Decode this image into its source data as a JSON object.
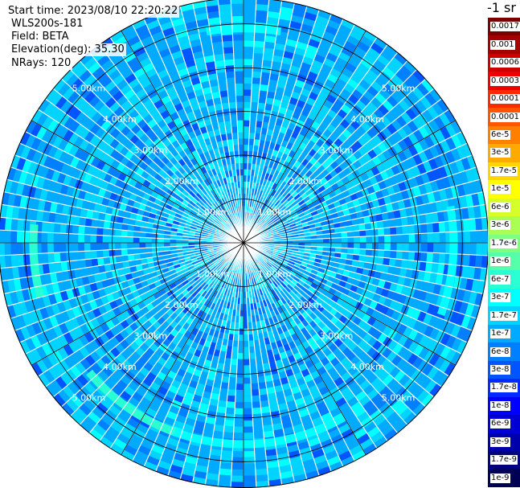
{
  "info": {
    "start_time": "Start time: 2023/08/10 22:20:22",
    "instrument": "WLS200s-181",
    "field": "Field: BETA",
    "elevation": "Elevation(deg): 35.30",
    "nrays": "NRays: 120"
  },
  "unit_label": "-1 sr",
  "chart_data": {
    "type": "heatmap",
    "subtype": "polar-ppi",
    "title": "",
    "n_rays": 120,
    "max_range_km": 5.6,
    "range_rings_km": [
      1.0,
      2.0,
      3.0,
      4.0,
      5.0
    ],
    "ring_labels": [
      "1.00km",
      "2.00km",
      "3.00km",
      "4.00km",
      "5.00km"
    ],
    "spokes_deg": [
      0,
      30,
      60,
      90,
      120,
      150,
      180,
      210,
      240,
      270,
      300,
      330
    ],
    "dominant_value": "1e-7",
    "enhanced_arcs": [
      {
        "range_km": 4.6,
        "from_deg": 150,
        "to_deg": 200,
        "value": "3e-7"
      },
      {
        "range_km": 4.6,
        "from_deg": 200,
        "to_deg": 230,
        "value": "6e-7"
      },
      {
        "range_km": 4.8,
        "from_deg": 80,
        "to_deg": 110,
        "value": "3e-7"
      },
      {
        "range_km": 4.9,
        "from_deg": 350,
        "to_deg": 10,
        "value": "3e-7"
      },
      {
        "range_km": 4.8,
        "from_deg": 255,
        "to_deg": 275,
        "value": "6e-7"
      }
    ],
    "colorbar": {
      "labels": [
        "0.0017",
        "0.001",
        "0.0006",
        "0.0003",
        "0.00017",
        "0.0001",
        "6e-5",
        "3e-5",
        "1.7e-5",
        "1e-5",
        "6e-6",
        "3e-6",
        "1.7e-6",
        "1e-6",
        "6e-7",
        "3e-7",
        "1.7e-7",
        "1e-7",
        "6e-8",
        "3e-8",
        "1.7e-8",
        "1e-8",
        "6e-9",
        "3e-9",
        "1.7e-9",
        "1e-9"
      ],
      "colors": [
        "#7a0000",
        "#a40000",
        "#cc0000",
        "#f00000",
        "#ff2a00",
        "#ff5500",
        "#ff7f00",
        "#ffaa00",
        "#ffd400",
        "#ffff00",
        "#d4ff2a",
        "#aaff55",
        "#7fff7f",
        "#55ffaa",
        "#2affd4",
        "#00ffff",
        "#00d4ff",
        "#00aaff",
        "#007fff",
        "#0055ff",
        "#002aff",
        "#0000ff",
        "#0000d4",
        "#0000aa",
        "#00007f",
        "#000055"
      ]
    }
  }
}
